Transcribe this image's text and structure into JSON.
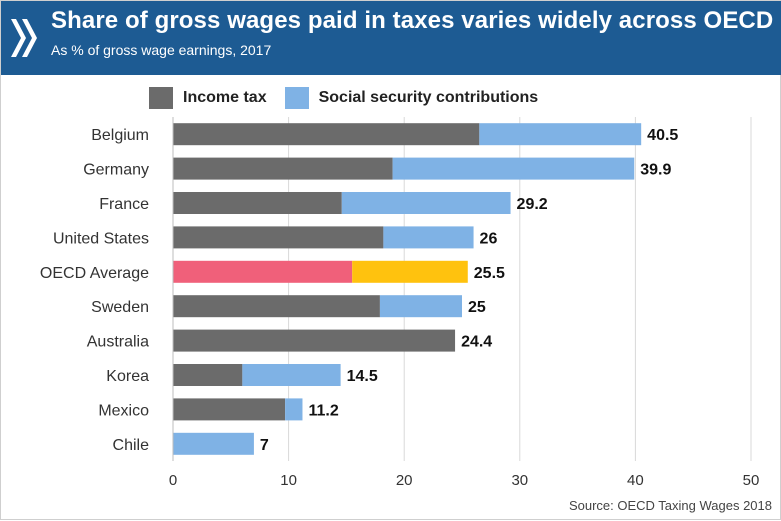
{
  "header": {
    "title": "Share of gross wages paid in taxes varies widely across OECD",
    "subtitle": "As % of gross wage earnings, 2017",
    "background": "#1d5b93"
  },
  "legend": [
    {
      "label": "Income tax",
      "color": "#6b6b6b"
    },
    {
      "label": "Social security contributions",
      "color": "#7fb2e5"
    }
  ],
  "source": "Source: OECD Taxing Wages 2018",
  "chart_data": {
    "type": "bar",
    "orientation": "horizontal",
    "stacked": true,
    "categories": [
      "Belgium",
      "Germany",
      "France",
      "United States",
      "OECD Average",
      "Sweden",
      "Australia",
      "Korea",
      "Mexico",
      "Chile"
    ],
    "series": [
      {
        "name": "Income tax",
        "color": "#6b6b6b",
        "values": [
          26.5,
          19.0,
          14.6,
          18.2,
          15.5,
          17.9,
          24.4,
          6.0,
          9.7,
          0
        ]
      },
      {
        "name": "Social security contributions",
        "color": "#7fb2e5",
        "values": [
          14.0,
          20.9,
          14.6,
          7.8,
          10.0,
          7.1,
          0,
          8.5,
          1.5,
          7.0
        ]
      }
    ],
    "totals": [
      "40.5",
      "39.9",
      "29.2",
      "26",
      "25.5",
      "25",
      "24.4",
      "14.5",
      "11.2",
      "7"
    ],
    "highlight": {
      "category": "OECD Average",
      "colors": [
        "#f0607a",
        "#ffc20e"
      ]
    },
    "xlim": [
      0,
      50
    ],
    "xticks": [
      0,
      10,
      20,
      30,
      40,
      50
    ],
    "grid": true,
    "legend_position": "top"
  }
}
